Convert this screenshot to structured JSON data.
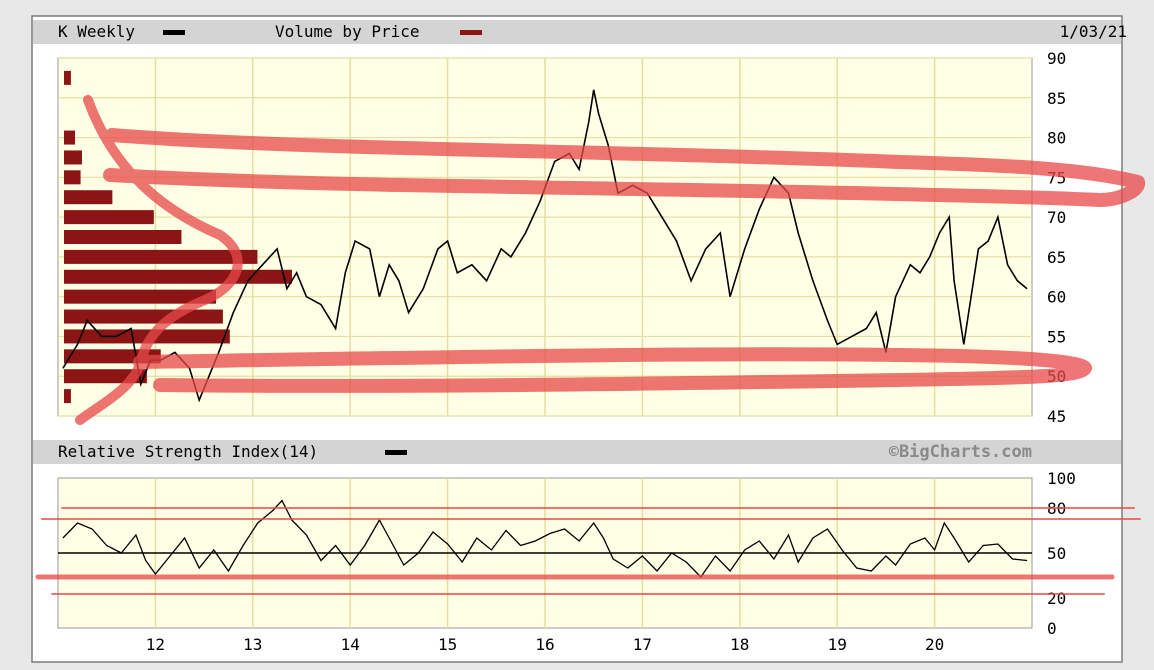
{
  "header": {
    "symbol_label": "K Weekly",
    "vbp_label": "Volume by Price",
    "date": "1/03/21"
  },
  "rsi_header": {
    "label": "Relative Strength Index(14)",
    "watermark": "©BigCharts.com"
  },
  "colors": {
    "plot_bg": "#ffffe6",
    "grid": "#e4dfa0",
    "price_line": "#000000",
    "vbp_bar": "#8b1414",
    "annotation": "#e84848",
    "header_bg": "#d4d4d4"
  },
  "chart_data": [
    {
      "type": "line",
      "name": "K Weekly price",
      "ylim": [
        45,
        90
      ],
      "y_ticks": [
        90,
        85,
        80,
        75,
        70,
        65,
        60,
        55,
        50,
        45
      ],
      "x_ticks": [
        "12",
        "13",
        "14",
        "15",
        "16",
        "17",
        "18",
        "19",
        "20"
      ],
      "xlim": [
        2011.0,
        2021.0
      ],
      "x": [
        2011.05,
        2011.2,
        2011.3,
        2011.45,
        2011.6,
        2011.75,
        2011.85,
        2011.95,
        2012.05,
        2012.2,
        2012.35,
        2012.45,
        2012.55,
        2012.65,
        2012.8,
        2012.95,
        2013.1,
        2013.25,
        2013.35,
        2013.45,
        2013.55,
        2013.7,
        2013.85,
        2013.95,
        2014.05,
        2014.2,
        2014.3,
        2014.4,
        2014.5,
        2014.6,
        2014.75,
        2014.9,
        2015.0,
        2015.1,
        2015.25,
        2015.4,
        2015.55,
        2015.65,
        2015.8,
        2015.95,
        2016.1,
        2016.25,
        2016.35,
        2016.45,
        2016.5,
        2016.55,
        2016.65,
        2016.75,
        2016.9,
        2017.05,
        2017.2,
        2017.35,
        2017.5,
        2017.65,
        2017.8,
        2017.9,
        2018.05,
        2018.2,
        2018.35,
        2018.5,
        2018.6,
        2018.75,
        2018.9,
        2019.0,
        2019.15,
        2019.3,
        2019.4,
        2019.5,
        2019.6,
        2019.75,
        2019.85,
        2019.95,
        2020.05,
        2020.15,
        2020.2,
        2020.3,
        2020.45,
        2020.55,
        2020.65,
        2020.75,
        2020.85,
        2020.95
      ],
      "y": [
        51,
        54,
        57,
        55,
        55,
        56,
        49,
        52,
        52,
        53,
        51,
        47,
        50,
        53,
        58,
        62,
        64,
        66,
        61,
        63,
        60,
        59,
        56,
        63,
        67,
        66,
        60,
        64,
        62,
        58,
        61,
        66,
        67,
        63,
        64,
        62,
        66,
        65,
        68,
        72,
        77,
        78,
        76,
        82,
        86,
        83,
        79,
        73,
        74,
        73,
        70,
        67,
        62,
        66,
        68,
        60,
        66,
        71,
        75,
        73,
        68,
        62,
        57,
        54,
        55,
        56,
        58,
        53,
        60,
        64,
        63,
        65,
        68,
        70,
        62,
        54,
        66,
        67,
        70,
        64,
        62,
        61
      ]
    },
    {
      "type": "bar",
      "name": "Volume by Price",
      "orientation": "horizontal",
      "price_levels": [
        87.5,
        85,
        82.5,
        80,
        77.5,
        75,
        72.5,
        70,
        67.5,
        65,
        62.5,
        60,
        57.5,
        55,
        52.5,
        50,
        47.5
      ],
      "values": [
        0.5,
        0,
        0,
        0.8,
        1.3,
        1.2,
        3.5,
        6.5,
        8.5,
        14,
        16.5,
        11,
        11.5,
        12,
        7,
        6,
        0.5
      ]
    },
    {
      "type": "line",
      "name": "Relative Strength Index(14)",
      "ylim": [
        0,
        100
      ],
      "y_ticks": [
        100,
        80,
        50,
        20,
        0
      ],
      "xlim": [
        2011.0,
        2021.0
      ],
      "x": [
        2011.05,
        2011.2,
        2011.35,
        2011.5,
        2011.65,
        2011.8,
        2011.9,
        2012.0,
        2012.15,
        2012.3,
        2012.45,
        2012.6,
        2012.75,
        2012.9,
        2013.05,
        2013.2,
        2013.3,
        2013.4,
        2013.55,
        2013.7,
        2013.85,
        2014.0,
        2014.15,
        2014.3,
        2014.4,
        2014.55,
        2014.7,
        2014.85,
        2015.0,
        2015.15,
        2015.3,
        2015.45,
        2015.6,
        2015.75,
        2015.9,
        2016.05,
        2016.2,
        2016.35,
        2016.5,
        2016.6,
        2016.7,
        2016.85,
        2017.0,
        2017.15,
        2017.3,
        2017.45,
        2017.6,
        2017.75,
        2017.9,
        2018.05,
        2018.2,
        2018.35,
        2018.5,
        2018.6,
        2018.75,
        2018.9,
        2019.05,
        2019.2,
        2019.35,
        2019.5,
        2019.6,
        2019.75,
        2019.9,
        2020.0,
        2020.1,
        2020.2,
        2020.35,
        2020.5,
        2020.65,
        2020.8,
        2020.95
      ],
      "y": [
        60,
        70,
        66,
        55,
        50,
        62,
        45,
        36,
        48,
        60,
        40,
        52,
        38,
        55,
        70,
        78,
        85,
        72,
        62,
        45,
        55,
        42,
        55,
        72,
        60,
        42,
        50,
        64,
        56,
        44,
        60,
        52,
        65,
        55,
        58,
        63,
        66,
        58,
        70,
        60,
        46,
        40,
        48,
        38,
        50,
        44,
        34,
        48,
        38,
        52,
        58,
        46,
        62,
        44,
        60,
        66,
        52,
        40,
        38,
        48,
        42,
        56,
        60,
        52,
        70,
        60,
        44,
        55,
        56,
        46,
        45
      ]
    }
  ]
}
